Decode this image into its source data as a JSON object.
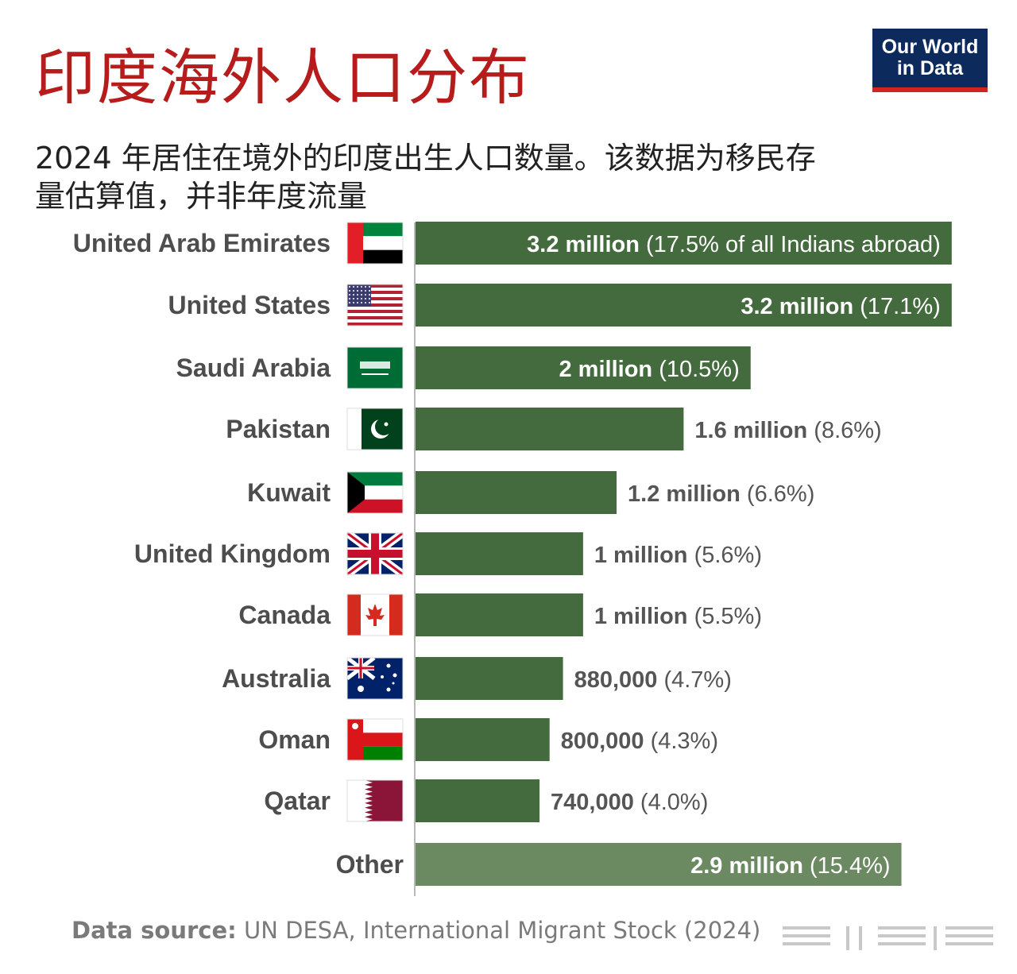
{
  "header": {
    "title": "印度海外人口分布",
    "subtitle": "2024 年居住在境外的印度出生人口数量。该数据为移民存量估算值，并非年度流量",
    "logo_line1": "Our World",
    "logo_line2": "in Data"
  },
  "footer": {
    "source_label": "Data source:",
    "source_text": "UN DESA, International Migrant Stock (2024)"
  },
  "colors": {
    "bar": "#446b3d",
    "bar_other": "#6b8a62",
    "title": "#b71c1c",
    "logo_bg": "#0d2a5c",
    "logo_accent": "#ce261e"
  },
  "chart_data": {
    "type": "bar",
    "orientation": "horizontal",
    "categories": [
      "United Arab Emirates",
      "United States",
      "Saudi Arabia",
      "Pakistan",
      "Kuwait",
      "United Kingdom",
      "Canada",
      "Australia",
      "Oman",
      "Qatar",
      "Other"
    ],
    "values": [
      3200000,
      3200000,
      2000000,
      1600000,
      1200000,
      1000000,
      1000000,
      880000,
      800000,
      740000,
      2900000
    ],
    "value_labels": [
      "3.2 million",
      "3.2 million",
      "2 million",
      "1.6 million",
      "1.2 million",
      "1 million",
      "1 million",
      "880,000",
      "800,000",
      "740,000",
      "2.9 million"
    ],
    "share_labels": [
      "(17.5% of all Indians abroad)",
      "(17.1%)",
      "(10.5%)",
      "(8.6%)",
      "(6.6%)",
      "(5.6%)",
      "(5.5%)",
      "(4.7%)",
      "(4.3%)",
      "(4.0%)",
      "(15.4%)"
    ],
    "flags": [
      "uae-flag-icon",
      "usa-flag-icon",
      "saudi-arabia-flag-icon",
      "pakistan-flag-icon",
      "kuwait-flag-icon",
      "uk-flag-icon",
      "canada-flag-icon",
      "australia-flag-icon",
      "oman-flag-icon",
      "qatar-flag-icon",
      ""
    ],
    "xlim": [
      0,
      3400000
    ],
    "grid": false,
    "legend": "none"
  }
}
